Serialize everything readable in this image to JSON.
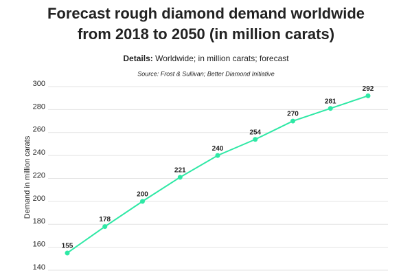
{
  "chart_data": {
    "type": "line",
    "title": [
      "Forecast rough diamond demand worldwide",
      "from 2018 to 2050 (in million carats)"
    ],
    "details_label": "Details:",
    "details": "Worldwide; in million carats; forecast",
    "source": "Source: Frost & Sullivan; Better Diamond Initiative",
    "ylabel": "Demand in million carats",
    "categories": [
      null,
      null,
      null,
      null,
      null,
      null,
      null,
      null,
      null
    ],
    "values": [
      155,
      178,
      200,
      221,
      240,
      254,
      270,
      281,
      292
    ],
    "color": "#2ee8a5",
    "ylim": [
      140,
      300
    ],
    "yticks": [
      140,
      160,
      180,
      200,
      220,
      240,
      260,
      280,
      300
    ],
    "grid": true
  }
}
